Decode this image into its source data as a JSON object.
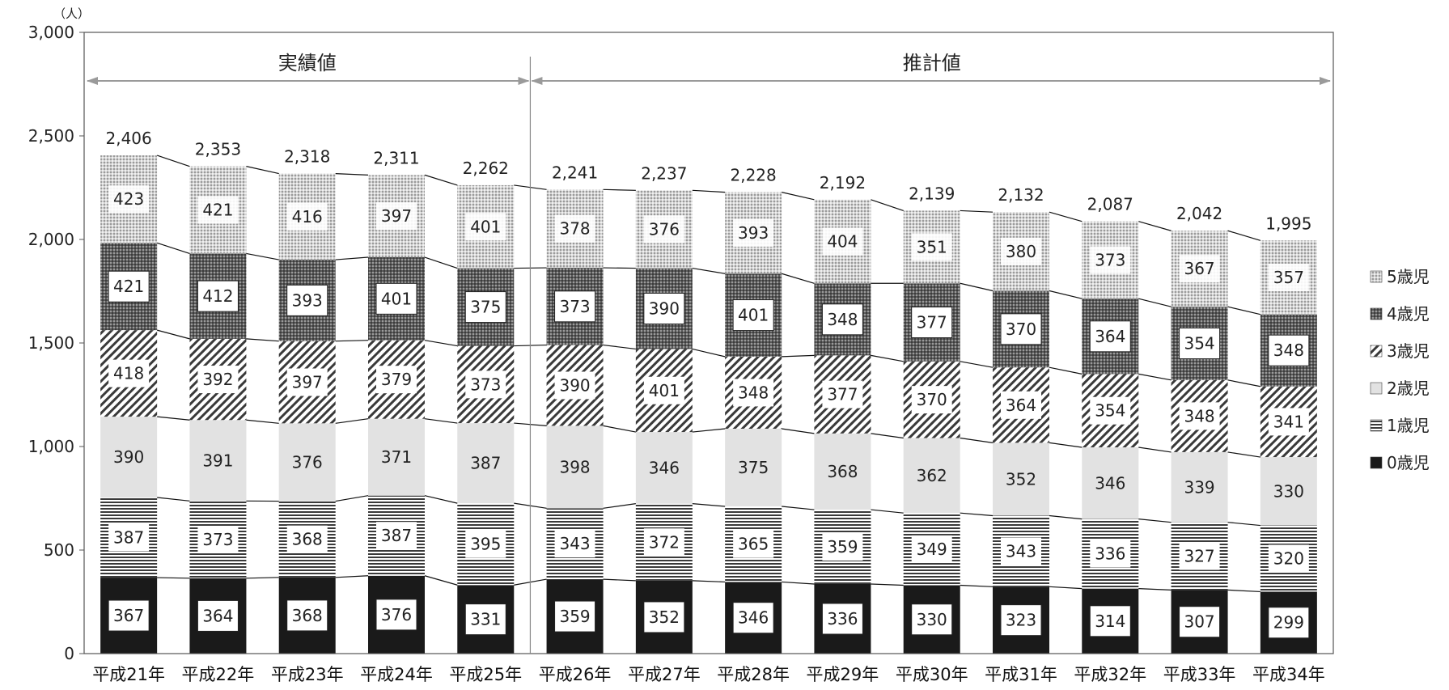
{
  "chart_data": {
    "type": "bar",
    "stacked": true,
    "unit_label": "（人）",
    "categories": [
      "平成21年",
      "平成22年",
      "平成23年",
      "平成24年",
      "平成25年",
      "平成26年",
      "平成27年",
      "平成28年",
      "平成29年",
      "平成30年",
      "平成31年",
      "平成32年",
      "平成33年",
      "平成34年"
    ],
    "series": [
      {
        "name": "0歳児",
        "values": [
          367,
          364,
          368,
          376,
          331,
          359,
          352,
          346,
          336,
          330,
          323,
          314,
          307,
          299
        ]
      },
      {
        "name": "1歳児",
        "values": [
          387,
          373,
          368,
          387,
          395,
          343,
          372,
          365,
          359,
          349,
          343,
          336,
          327,
          320
        ]
      },
      {
        "name": "2歳児",
        "values": [
          390,
          391,
          376,
          371,
          387,
          398,
          346,
          375,
          368,
          362,
          352,
          346,
          339,
          330
        ]
      },
      {
        "name": "3歳児",
        "values": [
          418,
          392,
          397,
          379,
          373,
          390,
          401,
          348,
          377,
          370,
          364,
          354,
          348,
          341
        ]
      },
      {
        "name": "4歳児",
        "values": [
          421,
          412,
          393,
          401,
          375,
          373,
          390,
          401,
          348,
          377,
          370,
          364,
          354,
          348
        ]
      },
      {
        "name": "5歳児",
        "values": [
          423,
          421,
          416,
          397,
          401,
          378,
          376,
          393,
          404,
          351,
          380,
          373,
          367,
          357
        ]
      }
    ],
    "totals": [
      "2,406",
      "2,353",
      "2,318",
      "2,311",
      "2,262",
      "2,241",
      "2,237",
      "2,228",
      "2,192",
      "2,139",
      "2,132",
      "2,087",
      "2,042",
      "1,995"
    ],
    "yticks": [
      "0",
      "500",
      "1,000",
      "1,500",
      "2,000",
      "2,500",
      "3,000"
    ],
    "ylim": [
      0,
      3000
    ],
    "periods": [
      {
        "label": "実績値",
        "from_index": 0,
        "to_index": 4
      },
      {
        "label": "推計値",
        "from_index": 5,
        "to_index": 13
      }
    ],
    "legend_order": [
      "5歳児",
      "4歳児",
      "3歳児",
      "2歳児",
      "1歳児",
      "0歳児"
    ],
    "legend_placement": "right",
    "grid": false
  }
}
